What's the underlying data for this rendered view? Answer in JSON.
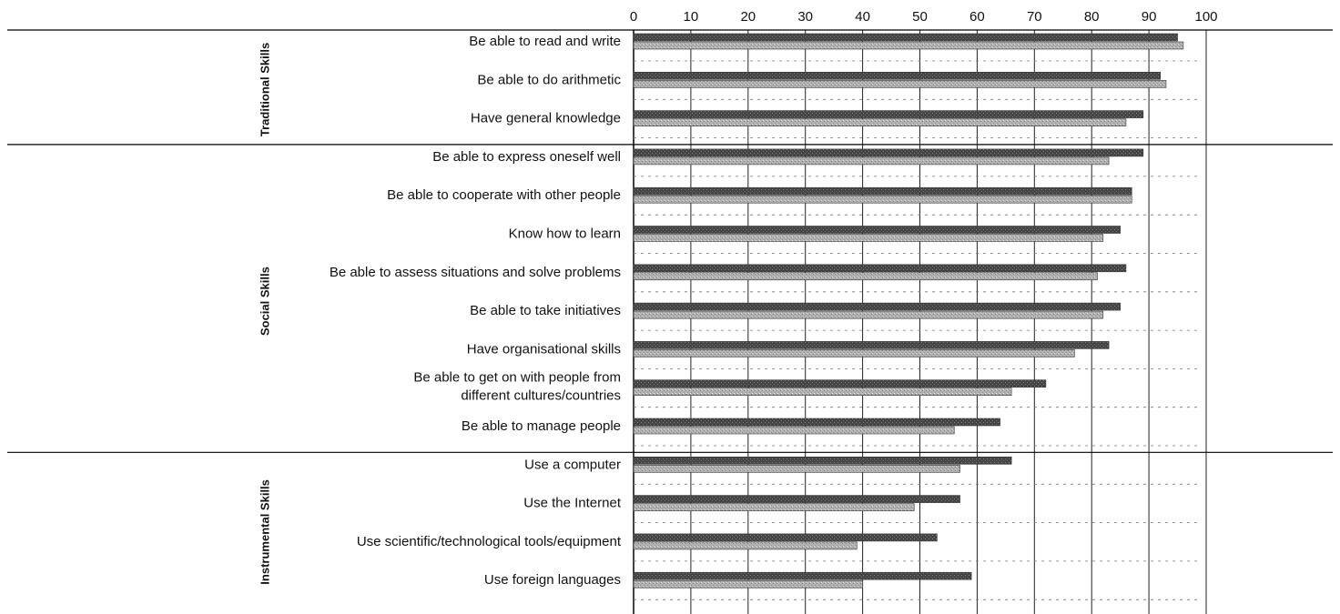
{
  "chart_data": {
    "type": "bar",
    "orientation": "horizontal",
    "title": "",
    "xlabel": "",
    "ylabel": "",
    "xlim": [
      0,
      100
    ],
    "x_ticks": [
      "0",
      "10",
      "20",
      "30",
      "40",
      "50",
      "60",
      "70",
      "80",
      "90",
      "100"
    ],
    "grid": true,
    "legend": "none",
    "groups": [
      {
        "name": "Traditional Skills",
        "items": [
          {
            "label": [
              "Be able to read and write"
            ],
            "values": [
              95,
              96
            ]
          },
          {
            "label": [
              "Be able to do arithmetic"
            ],
            "values": [
              92,
              93
            ]
          },
          {
            "label": [
              "Have general knowledge"
            ],
            "values": [
              89,
              86
            ]
          }
        ]
      },
      {
        "name": "Social Skills",
        "items": [
          {
            "label": [
              "Be able to express oneself well"
            ],
            "values": [
              89,
              83
            ]
          },
          {
            "label": [
              "Be able to cooperate with other people"
            ],
            "values": [
              87,
              87
            ]
          },
          {
            "label": [
              "Know how to learn"
            ],
            "values": [
              85,
              82
            ]
          },
          {
            "label": [
              "Be able to assess situations and solve problems"
            ],
            "values": [
              86,
              81
            ]
          },
          {
            "label": [
              "Be able to take initiatives"
            ],
            "values": [
              85,
              82
            ]
          },
          {
            "label": [
              "Have organisational skills"
            ],
            "values": [
              83,
              77
            ]
          },
          {
            "label": [
              "Be able to get on with people from",
              "different cultures/countries"
            ],
            "values": [
              72,
              66
            ]
          },
          {
            "label": [
              "Be able to manage people"
            ],
            "values": [
              64,
              56
            ]
          }
        ]
      },
      {
        "name": "Instrumental Skills",
        "items": [
          {
            "label": [
              "Use a computer"
            ],
            "values": [
              66,
              57
            ]
          },
          {
            "label": [
              "Use the Internet"
            ],
            "values": [
              57,
              49
            ]
          },
          {
            "label": [
              "Use scientific/technological tools/equipment"
            ],
            "values": [
              53,
              39
            ]
          },
          {
            "label": [
              "Use foreign languages"
            ],
            "values": [
              59,
              40
            ]
          }
        ]
      }
    ],
    "colors": {
      "series_1": "#444444",
      "series_2": "#aaaaaa",
      "grid": "#222222"
    }
  }
}
